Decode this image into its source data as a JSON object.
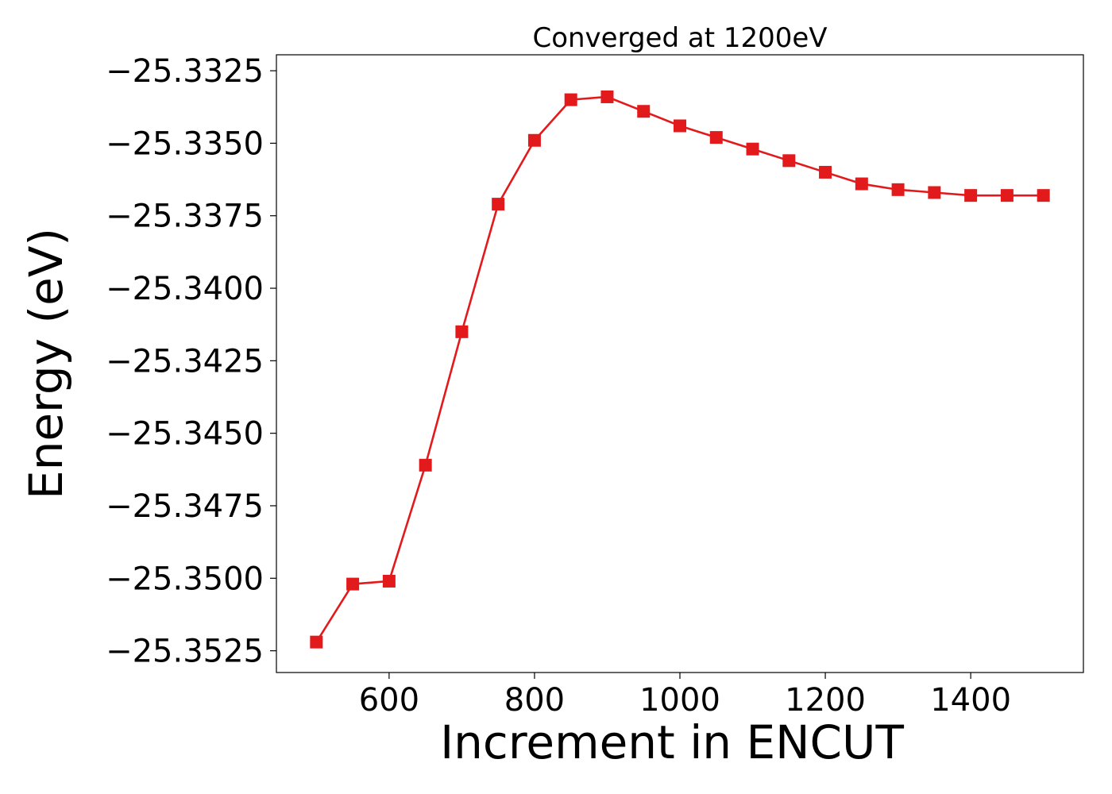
{
  "chart_data": {
    "type": "line",
    "title": "Converged at 1200eV",
    "xlabel": "Increment in ENCUT",
    "ylabel": "Energy (eV)",
    "x": [
      500,
      550,
      600,
      650,
      700,
      750,
      800,
      850,
      900,
      950,
      1000,
      1050,
      1100,
      1150,
      1200,
      1250,
      1300,
      1350,
      1400,
      1450,
      1500
    ],
    "series": [
      {
        "values": [
          -25.3522,
          -25.3502,
          -25.3501,
          -25.3461,
          -25.3415,
          -25.3371,
          -25.3349,
          -25.3335,
          -25.3334,
          -25.3339,
          -25.3344,
          -25.3348,
          -25.3352,
          -25.3356,
          -25.336,
          -25.3364,
          -25.3366,
          -25.3367,
          -25.3368,
          -25.3368,
          -25.3368
        ],
        "color": "#e31a1c",
        "marker": "square"
      }
    ],
    "xlim": [
      445,
      1555
    ],
    "ylim": [
      -25.35325,
      -25.33195
    ],
    "xticks": [
      600,
      800,
      1000,
      1200,
      1400
    ],
    "xtick_labels": [
      "600",
      "800",
      "1000",
      "1200",
      "1400"
    ],
    "yticks": [
      -25.3325,
      -25.335,
      -25.3375,
      -25.34,
      -25.3425,
      -25.345,
      -25.3475,
      -25.35,
      -25.3525
    ],
    "ytick_labels": [
      "−25.3325",
      "−25.3350",
      "−25.3375",
      "−25.3400",
      "−25.3425",
      "−25.3450",
      "−25.3475",
      "−25.3500",
      "−25.3525"
    ],
    "grid": false,
    "legend": false
  }
}
